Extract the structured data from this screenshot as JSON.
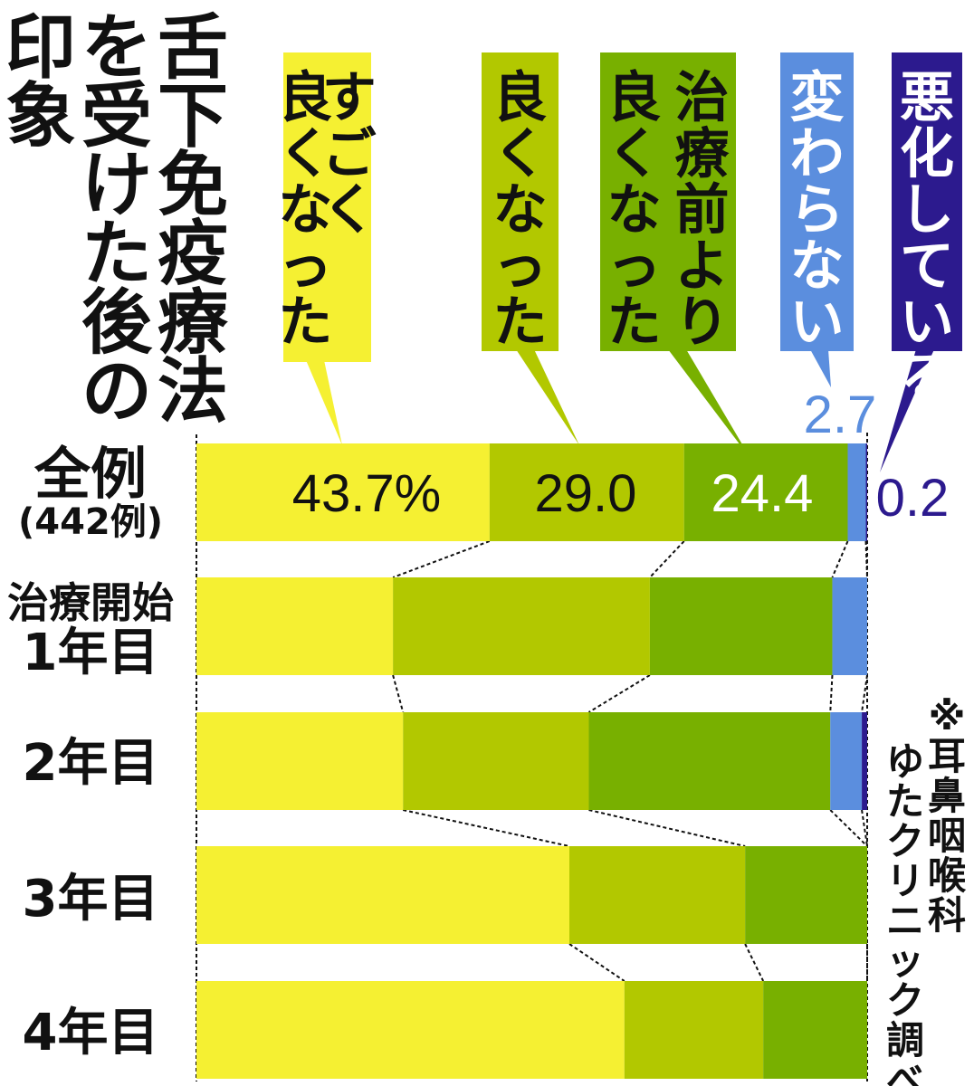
{
  "chart_data": {
    "type": "bar",
    "orientation": "horizontal",
    "stacked": true,
    "normalized": true,
    "title": "舌下免疫療法を受けた後の印象",
    "title_columns": [
      "舌下免疫療法",
      "を受けた後の",
      "印象"
    ],
    "categories": [
      "全例",
      "治療開始1年目",
      "2年目",
      "3年目",
      "4年目"
    ],
    "category_labels": [
      {
        "lines": [
          "全例",
          "(442例)"
        ]
      },
      {
        "lines": [
          "治療開始",
          "1年目"
        ]
      },
      {
        "lines": [
          "2年目"
        ]
      },
      {
        "lines": [
          "3年目"
        ]
      },
      {
        "lines": [
          "4年目"
        ]
      }
    ],
    "series": [
      {
        "name": "すごく良くなった",
        "name_lines": [
          "すごく",
          "良くなった"
        ],
        "color": "#f5f032",
        "values": [
          43.7,
          29.3,
          30.8,
          55.6,
          63.8
        ]
      },
      {
        "name": "良くなった",
        "name_lines": [
          "良くなった"
        ],
        "color": "#b2c800",
        "values": [
          29.0,
          38.3,
          27.7,
          26.2,
          20.7
        ]
      },
      {
        "name": "治療前より良くなった",
        "name_lines": [
          "治療前より",
          "良くなった"
        ],
        "color": "#78b000",
        "values": [
          24.4,
          27.2,
          36.0,
          18.2,
          15.5
        ]
      },
      {
        "name": "変わらない",
        "name_lines": [
          "変わらない"
        ],
        "color": "#5b8ede",
        "values": [
          2.7,
          5.2,
          4.7,
          0.0,
          0.0
        ]
      },
      {
        "name": "悪化している",
        "name_lines": [
          "悪化している"
        ],
        "color": "#2c1a8e",
        "values": [
          0.2,
          0.0,
          0.8,
          0.0,
          0.0
        ]
      }
    ],
    "data_labels": [
      {
        "series": 0,
        "category": 0,
        "text": "43.7%"
      },
      {
        "series": 1,
        "category": 0,
        "text": "29.0"
      },
      {
        "series": 2,
        "category": 0,
        "text": "24.4"
      },
      {
        "series": 3,
        "category": 0,
        "text": "2.7"
      },
      {
        "series": 4,
        "category": 0,
        "text": "0.2"
      }
    ],
    "xlim": [
      0,
      100
    ],
    "legend_placement": "top",
    "grid": false,
    "source_note": "※耳鼻咽喉科ゆたクリニック調べ"
  }
}
